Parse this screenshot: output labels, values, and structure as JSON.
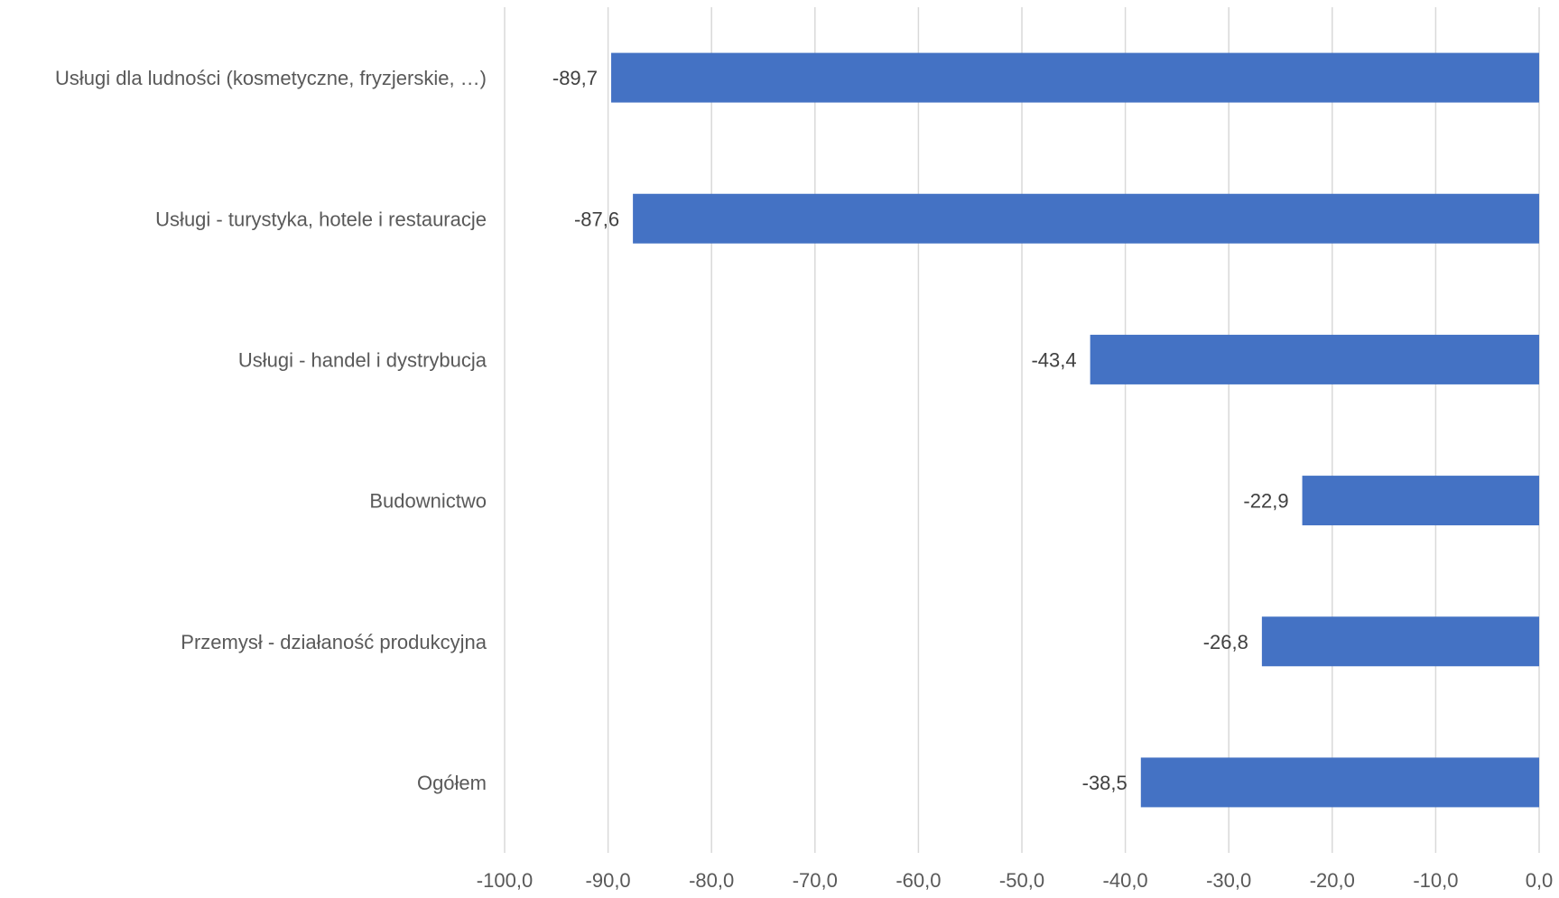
{
  "chart_data": {
    "type": "bar",
    "orientation": "horizontal",
    "categories": [
      "Usługi dla ludności (kosmetyczne, fryzjerskie, …)",
      "Usługi - turystyka, hotele i restauracje",
      "Usługi - handel i dystrybucja",
      "Budownictwo",
      "Przemysł - działaność produkcyjna",
      "Ogółem"
    ],
    "values": [
      -89.7,
      -87.6,
      -43.4,
      -22.9,
      -26.8,
      -38.5
    ],
    "data_labels": [
      "-89,7",
      "-87,6",
      "-43,4",
      "-22,9",
      "-26,8",
      "-38,5"
    ],
    "xlim": [
      -100,
      0
    ],
    "ticks": [
      -100,
      -90,
      -80,
      -70,
      -60,
      -50,
      -40,
      -30,
      -20,
      -10,
      0
    ],
    "tick_labels": [
      "-100,0",
      "-90,0",
      "-80,0",
      "-70,0",
      "-60,0",
      "-50,0",
      "-40,0",
      "-30,0",
      "-20,0",
      "-10,0",
      "0,0"
    ],
    "title": "",
    "xlabel": "",
    "ylabel": "",
    "grid": "vertical",
    "legend": "none",
    "bar_color": "#4472C4",
    "grid_color": "#D9D9D9"
  }
}
